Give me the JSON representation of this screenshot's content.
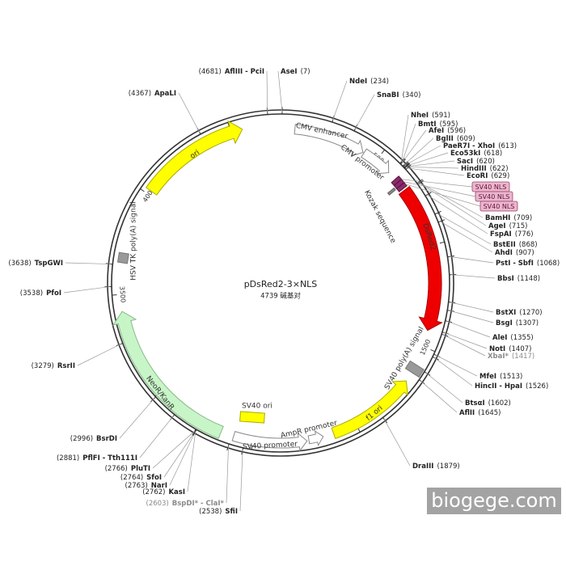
{
  "map": {
    "name": "pDsRed2-3×NLS",
    "length": {
      "value": 4739,
      "label": "4739 碱基对"
    }
  },
  "scale_ticks": [
    500,
    1000,
    1500,
    2000,
    2500,
    3000,
    3500,
    4000,
    4500
  ],
  "features": [
    {
      "label": "CMV enhancer"
    },
    {
      "label": "CMV promoter"
    },
    {
      "label": "Kozak sequence"
    },
    {
      "label": "DsRed2"
    },
    {
      "label": "SV40 poly(A) signal"
    },
    {
      "label": "f1 ori"
    },
    {
      "label": "AmpR promoter"
    },
    {
      "label": "SV40 promoter"
    },
    {
      "label": "SV40 ori"
    },
    {
      "label": "NeoR/KanR"
    },
    {
      "label": "HSV TK poly(A) signal"
    },
    {
      "label": "ori"
    }
  ],
  "nls_labels": [
    "SV40 NLS",
    "SV40 NLS",
    "SV40 NLS"
  ],
  "sites": [
    {
      "name": "AflIII - PciI",
      "position": {
        "value": 4681,
        "label": "(4681)"
      }
    },
    {
      "name": "AseI",
      "position": {
        "value": 7,
        "label": "(7)"
      }
    },
    {
      "name": "ApaLI",
      "position": {
        "value": 4367,
        "label": "(4367)"
      }
    },
    {
      "name": "NdeI",
      "position": {
        "value": 234,
        "label": "(234)"
      }
    },
    {
      "name": "SnaBI",
      "position": {
        "value": 340,
        "label": "(340)"
      }
    },
    {
      "name": "NheI",
      "position": {
        "value": 591,
        "label": "(591)"
      }
    },
    {
      "name": "BmtI",
      "position": {
        "value": 595,
        "label": "(595)"
      }
    },
    {
      "name": "AfeI",
      "position": {
        "value": 596,
        "label": "(596)"
      }
    },
    {
      "name": "BglII",
      "position": {
        "value": 609,
        "label": "(609)"
      }
    },
    {
      "name": "PaeR7I - XhoI",
      "position": {
        "value": 613,
        "label": "(613)"
      }
    },
    {
      "name": "Eco53kI",
      "position": {
        "value": 618,
        "label": "(618)"
      }
    },
    {
      "name": "SacI",
      "position": {
        "value": 620,
        "label": "(620)"
      }
    },
    {
      "name": "HindIII",
      "position": {
        "value": 622,
        "label": "(622)"
      }
    },
    {
      "name": "EcoRI",
      "position": {
        "value": 629,
        "label": "(629)"
      }
    },
    {
      "name": "BamHI",
      "position": {
        "value": 709,
        "label": "(709)"
      }
    },
    {
      "name": "AgeI",
      "position": {
        "value": 715,
        "label": "(715)"
      }
    },
    {
      "name": "FspAI",
      "position": {
        "value": 776,
        "label": "(776)"
      }
    },
    {
      "name": "BstEII",
      "position": {
        "value": 868,
        "label": "(868)"
      }
    },
    {
      "name": "AhdI",
      "position": {
        "value": 907,
        "label": "(907)"
      }
    },
    {
      "name": "PstI - SbfI",
      "position": {
        "value": 1068,
        "label": "(1068)"
      }
    },
    {
      "name": "BbsI",
      "position": {
        "value": 1148,
        "label": "(1148)"
      }
    },
    {
      "name": "BstXI",
      "position": {
        "value": 1270,
        "label": "(1270)"
      }
    },
    {
      "name": "BsgI",
      "position": {
        "value": 1307,
        "label": "(1307)"
      }
    },
    {
      "name": "AleI",
      "position": {
        "value": 1355,
        "label": "(1355)"
      }
    },
    {
      "name": "NotI",
      "position": {
        "value": 1407,
        "label": "(1407)"
      }
    },
    {
      "name": "XbaI*",
      "position": {
        "value": 1417,
        "label": "(1417)"
      },
      "color": "#8a8a8a"
    },
    {
      "name": "MfeI",
      "position": {
        "value": 1513,
        "label": "(1513)"
      }
    },
    {
      "name": "HincII - HpaI",
      "position": {
        "value": 1526,
        "label": "(1526)"
      }
    },
    {
      "name": "BtsαI",
      "position": {
        "value": 1602,
        "label": "(1602)"
      }
    },
    {
      "name": "AflII",
      "position": {
        "value": 1645,
        "label": "(1645)"
      }
    },
    {
      "name": "DraIII",
      "position": {
        "value": 1879,
        "label": "(1879)"
      }
    },
    {
      "name": "TspGWI",
      "position": {
        "value": 3638,
        "label": "(3638)"
      }
    },
    {
      "name": "PfoI",
      "position": {
        "value": 3538,
        "label": "(3538)"
      }
    },
    {
      "name": "RsrII",
      "position": {
        "value": 3279,
        "label": "(3279)"
      }
    },
    {
      "name": "BsrDI",
      "position": {
        "value": 2996,
        "label": "(2996)"
      }
    },
    {
      "name": "PflFI - Tth111I",
      "position": {
        "value": 2881,
        "label": "(2881)"
      }
    },
    {
      "name": "PluTI",
      "position": {
        "value": 2766,
        "label": "(2766)"
      }
    },
    {
      "name": "SfoI",
      "position": {
        "value": 2764,
        "label": "(2764)"
      }
    },
    {
      "name": "NarI",
      "position": {
        "value": 2763,
        "label": "(2763)"
      }
    },
    {
      "name": "KasI",
      "position": {
        "value": 2762,
        "label": "(2762)"
      }
    },
    {
      "name": "BspDI* - ClaI*",
      "position": {
        "value": 2603,
        "label": "(2603)"
      },
      "color": "#8a8a8a"
    },
    {
      "name": "SfiI",
      "position": {
        "value": 2538,
        "label": "(2538)"
      }
    }
  ],
  "watermark": "biogege.com"
}
